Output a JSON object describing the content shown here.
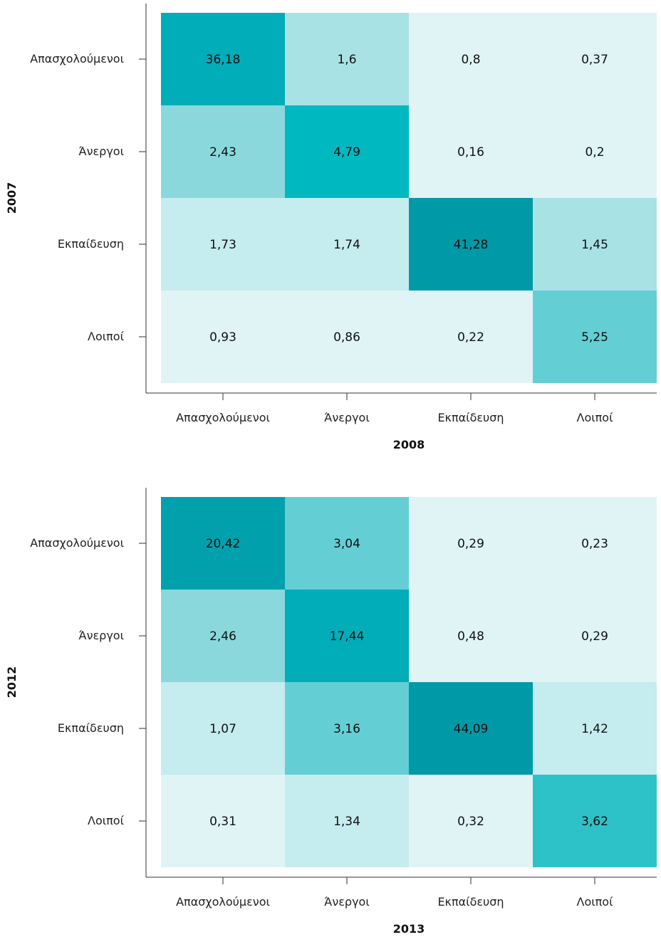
{
  "chart_data": [
    {
      "type": "heatmap",
      "xlabel": "2008",
      "ylabel": "2007",
      "x_categories": [
        "Απασχολούμενοι",
        "Άνεργοι",
        "Εκπαίδευση",
        "Λοιποί"
      ],
      "y_categories": [
        "Απασχολούμενοι",
        "Άνεργοι",
        "Εκπαίδευση",
        "Λοιποί"
      ],
      "values": [
        [
          36.18,
          1.6,
          0.8,
          0.37
        ],
        [
          2.43,
          4.79,
          0.16,
          0.2
        ],
        [
          1.73,
          1.74,
          41.28,
          1.45
        ],
        [
          0.93,
          0.86,
          0.22,
          5.25
        ]
      ],
      "labels": [
        [
          "36,18",
          "1,6",
          "0,8",
          "0,37"
        ],
        [
          "2,43",
          "4,79",
          "0,16",
          "0,2"
        ],
        [
          "1,73",
          "1,74",
          "41,28",
          "1,45"
        ],
        [
          "0,93",
          "0,86",
          "0,22",
          "5,25"
        ]
      ],
      "cell_colors": [
        [
          "#00adb8",
          "#a8e2e5",
          "#e0f4f6",
          "#e0f4f6"
        ],
        [
          "#8ad8dc",
          "#00b8c0",
          "#e0f4f6",
          "#e0f4f6"
        ],
        [
          "#c5ecee",
          "#c5ecee",
          "#0099a8",
          "#a8e2e5"
        ],
        [
          "#e0f4f6",
          "#e0f4f6",
          "#e0f4f6",
          "#63cfd4"
        ]
      ]
    },
    {
      "type": "heatmap",
      "xlabel": "2013",
      "ylabel": "2012",
      "x_categories": [
        "Απασχολούμενοι",
        "Άνεργοι",
        "Εκπαίδευση",
        "Λοιποί"
      ],
      "y_categories": [
        "Απασχολούμενοι",
        "Άνεργοι",
        "Εκπαίδευση",
        "Λοιποί"
      ],
      "values": [
        [
          20.42,
          3.04,
          0.29,
          0.23
        ],
        [
          2.46,
          17.44,
          0.48,
          0.29
        ],
        [
          1.07,
          3.16,
          44.09,
          1.42
        ],
        [
          0.31,
          1.34,
          0.32,
          3.62
        ]
      ],
      "labels": [
        [
          "20,42",
          "3,04",
          "0,29",
          "0,23"
        ],
        [
          "2,46",
          "17,44",
          "0,48",
          "0,29"
        ],
        [
          "1,07",
          "3,16",
          "44,09",
          "1,42"
        ],
        [
          "0,31",
          "1,34",
          "0,32",
          "3,62"
        ]
      ],
      "cell_colors": [
        [
          "#00a0ad",
          "#63cfd4",
          "#e0f4f6",
          "#e0f4f6"
        ],
        [
          "#8ad8dc",
          "#00adb8",
          "#e0f4f6",
          "#e0f4f6"
        ],
        [
          "#c5ecee",
          "#63cfd4",
          "#0099a8",
          "#c5ecee"
        ],
        [
          "#e0f4f6",
          "#c5ecee",
          "#e0f4f6",
          "#2cc2c8"
        ]
      ]
    }
  ]
}
